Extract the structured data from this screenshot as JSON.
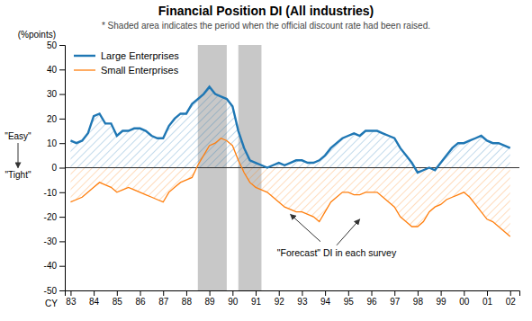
{
  "chart_data": {
    "type": "line",
    "title": "Financial Position DI (All industries)",
    "subtitle": "* Shaded area indicates the period when the official discount rate had been raised.",
    "ylabel": "(%points)",
    "xlabel": "CY",
    "easy_label": "\"Easy\"",
    "tight_label": "\"Tight\"",
    "legend": "upper left",
    "grid": false,
    "xlim": [
      82.75,
      102.4
    ],
    "xticks": [
      83,
      84,
      85,
      86,
      87,
      88,
      89,
      90,
      91,
      92,
      93,
      94,
      95,
      96,
      97,
      98,
      99,
      {
        "value": 100,
        "label": "00"
      },
      {
        "value": 101,
        "label": "01"
      },
      {
        "value": 102,
        "label": "02"
      }
    ],
    "ylim": [
      -50,
      50
    ],
    "yticks": [
      -50,
      -40,
      -30,
      -20,
      -10,
      0,
      10,
      20,
      30,
      40,
      50
    ],
    "shaded_regions": [
      [
        88.5,
        89.75
      ],
      [
        90.25,
        91.25
      ]
    ],
    "shaded_color": "#c8c8c8",
    "annotations": [
      {
        "text": "\"Forecast\" DI in each survey",
        "x": 94.5,
        "y": -36,
        "arrows": [
          {
            "from": [
              94.5,
              -36
            ],
            "to": [
              95.5,
              -21
            ]
          },
          {
            "from": [
              93.8,
              -34.5
            ],
            "to": [
              92.5,
              -19
            ]
          }
        ]
      }
    ],
    "x": [
      83.0,
      83.25,
      83.5,
      83.75,
      84.0,
      84.25,
      84.5,
      84.75,
      85.0,
      85.25,
      85.5,
      85.75,
      86.0,
      86.25,
      86.5,
      86.75,
      87.0,
      87.25,
      87.5,
      87.75,
      88.0,
      88.25,
      88.5,
      88.75,
      89.0,
      89.25,
      89.5,
      89.75,
      90.0,
      90.25,
      90.5,
      90.75,
      91.0,
      91.25,
      91.5,
      91.75,
      92.0,
      92.25,
      92.5,
      92.75,
      93.0,
      93.25,
      93.5,
      93.75,
      94.0,
      94.25,
      94.5,
      94.75,
      95.0,
      95.25,
      95.5,
      95.75,
      96.0,
      96.25,
      96.5,
      96.75,
      97.0,
      97.25,
      97.5,
      97.75,
      98.0,
      98.25,
      98.5,
      98.75,
      99.0,
      99.25,
      99.5,
      99.75,
      100.0,
      100.25,
      100.5,
      100.75,
      101.0,
      101.25,
      101.5,
      101.75,
      102.0
    ],
    "series": [
      {
        "name": "Large Enterprises",
        "values": [
          11,
          10,
          11,
          14,
          21,
          22,
          18,
          18,
          13,
          15,
          15,
          16,
          16,
          15,
          13,
          12,
          12,
          17,
          20,
          22,
          22,
          26,
          28,
          30,
          33,
          30,
          29,
          28,
          25,
          15,
          8,
          3,
          2,
          1,
          0,
          1,
          2,
          1,
          2,
          3,
          3,
          2,
          2,
          3,
          5,
          8,
          10,
          12,
          13,
          14,
          13,
          15,
          15,
          15,
          14,
          13,
          12,
          8,
          5,
          2,
          -2,
          -1,
          0,
          -1,
          2,
          5,
          8,
          10,
          10,
          11,
          12,
          13,
          11,
          10,
          10,
          9,
          8
        ]
      },
      {
        "name": "Small Enterprises",
        "values": [
          -14,
          -13,
          -12,
          -10,
          -8,
          -6,
          -7,
          -8,
          -10,
          -9,
          -8,
          -9,
          -10,
          -11,
          -12,
          -13,
          -14,
          -10,
          -8,
          -6,
          -5,
          -4,
          1,
          5,
          9,
          10,
          12,
          11,
          9,
          3,
          -2,
          -6,
          -8,
          -9,
          -10,
          -12,
          -14,
          -16,
          -17,
          -18,
          -18,
          -19,
          -20,
          -22,
          -18,
          -14,
          -12,
          -10,
          -10,
          -11,
          -11,
          -10,
          -10,
          -10,
          -12,
          -14,
          -16,
          -20,
          -22,
          -24,
          -24,
          -22,
          -18,
          -16,
          -15,
          -13,
          -12,
          -11,
          -10,
          -12,
          -15,
          -18,
          -21,
          -22,
          -24,
          -26,
          -28
        ]
      }
    ]
  }
}
